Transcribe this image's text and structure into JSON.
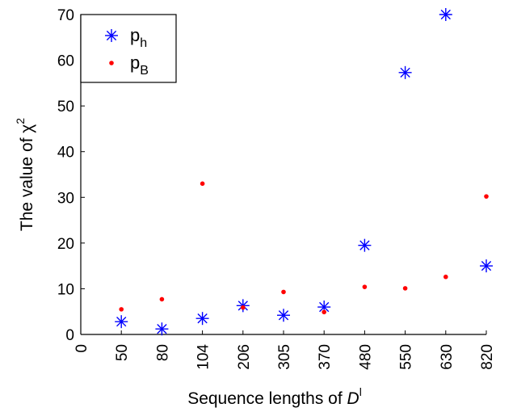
{
  "chart_data": {
    "type": "scatter",
    "categories": [
      "0",
      "50",
      "80",
      "104",
      "206",
      "305",
      "370",
      "480",
      "550",
      "630",
      "820"
    ],
    "series": [
      {
        "name": "p_h",
        "legend_main": "p",
        "legend_sub": "h",
        "marker": "asterisk",
        "color": "#0000ff",
        "values": [
          null,
          2.8,
          1.2,
          3.5,
          6.3,
          4.2,
          6.0,
          19.5,
          57.3,
          70.0,
          15.0
        ]
      },
      {
        "name": "p_B",
        "legend_main": "p",
        "legend_sub": "B",
        "marker": "dot",
        "color": "#ff0000",
        "values": [
          null,
          5.5,
          7.7,
          33.0,
          5.9,
          9.3,
          4.9,
          10.4,
          10.1,
          12.6,
          30.2
        ]
      }
    ],
    "y_ticks": [
      "0",
      "10",
      "20",
      "30",
      "40",
      "50",
      "60",
      "70"
    ],
    "ylim": [
      0,
      70
    ],
    "xlabel_main": "Sequence lengths of ",
    "xlabel_italic": "D",
    "xlabel_sup": "l",
    "ylabel_main": "The value of χ",
    "ylabel_sup": "2",
    "legend_position": "top-left",
    "grid": false
  }
}
